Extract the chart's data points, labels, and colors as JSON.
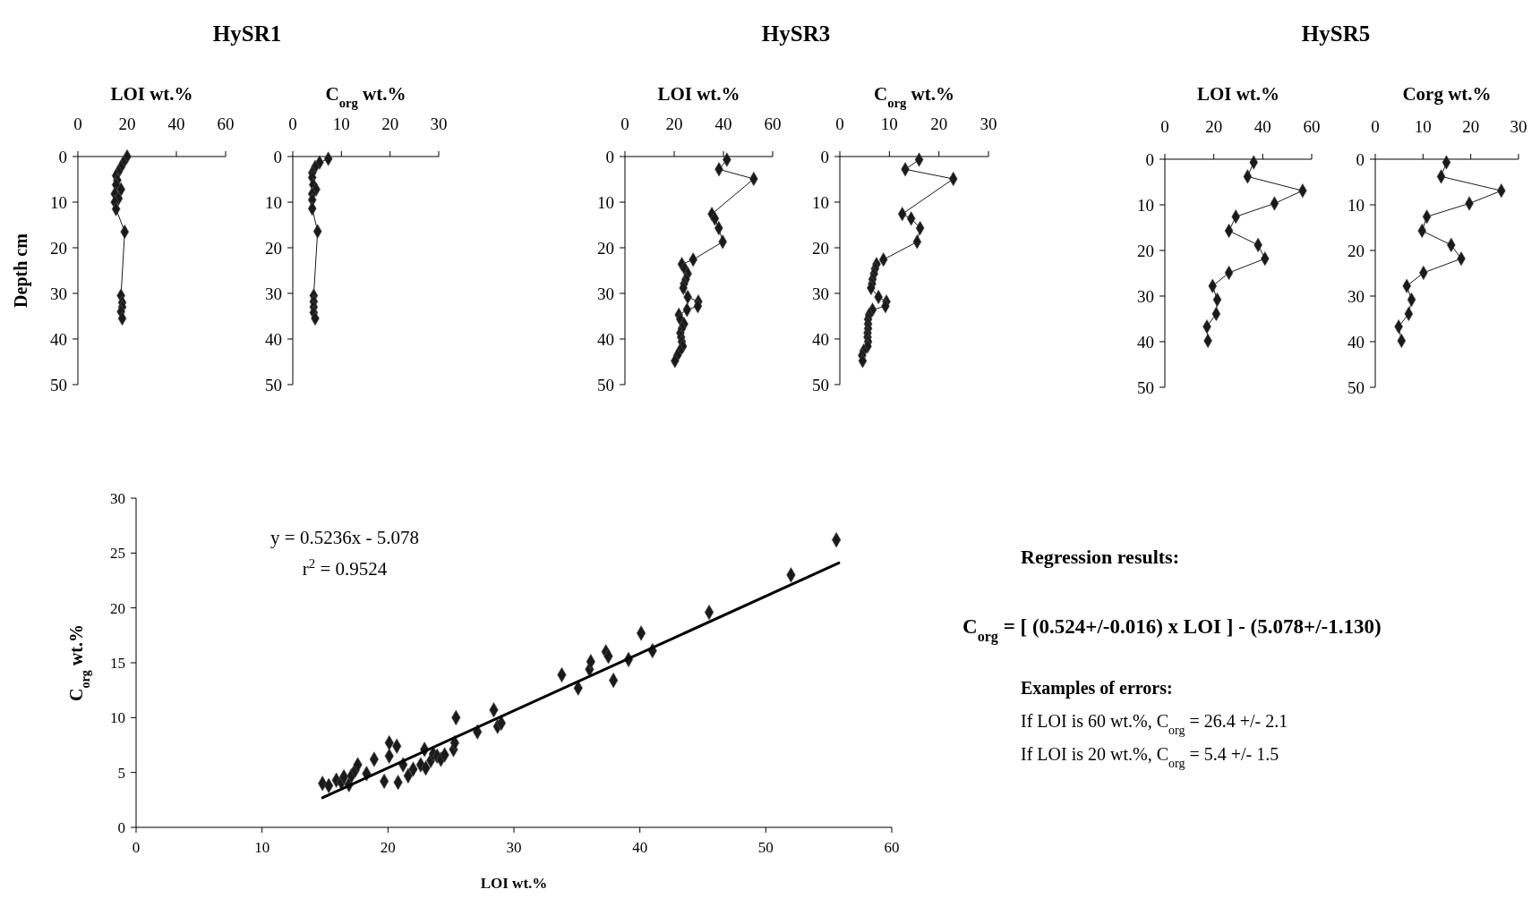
{
  "chart_data": [
    {
      "type": "line",
      "title": "HySR1",
      "xlabel": "LOI wt.%",
      "ylabel": "Depth cm",
      "marker": "diamond",
      "xlim": [
        0,
        60
      ],
      "xticks": [
        0,
        20,
        40,
        60
      ],
      "ylim": [
        50,
        0
      ],
      "yticks": [
        0,
        10,
        20,
        30,
        40,
        50
      ],
      "series": [
        {
          "color": "#1a1a1a",
          "x": [
            20,
            18.5,
            17.5,
            16.5,
            15.5,
            16,
            15.5,
            17.5,
            15,
            16.5,
            15,
            15.5,
            19,
            17.5,
            18,
            18,
            17.5,
            18
          ],
          "values": [
            0,
            1.3,
            2.3,
            3.3,
            4.2,
            5.2,
            6.2,
            7.2,
            8.2,
            9.2,
            10,
            11.5,
            16.5,
            30.5,
            32,
            33,
            34,
            35.5
          ]
        }
      ]
    },
    {
      "type": "line",
      "xlabel": "C$_{org}$ wt.%",
      "marker": "diamond",
      "xlim": [
        0,
        30
      ],
      "xticks": [
        0,
        10,
        20,
        30
      ],
      "ylim": [
        50,
        0
      ],
      "yticks": [
        0,
        10,
        20,
        30,
        40,
        50
      ],
      "series": [
        {
          "color": "#1a1a1a",
          "x": [
            7.3,
            5.5,
            4.6,
            4,
            4,
            4.2,
            4.8,
            4,
            4,
            4,
            5.1,
            4.3,
            4.3,
            4.3,
            4.3,
            4.6
          ],
          "values": [
            0.5,
            1.3,
            2.3,
            3.6,
            4.6,
            6.2,
            7.2,
            8.2,
            9.5,
            11.4,
            16.4,
            30.5,
            31.8,
            33,
            34.2,
            35.5
          ]
        }
      ]
    },
    {
      "type": "line",
      "title": "HySR3",
      "xlabel": "LOI wt.%",
      "marker": "diamond",
      "xlim": [
        0,
        60
      ],
      "xticks": [
        0,
        20,
        40,
        60
      ],
      "ylim": [
        50,
        0
      ],
      "yticks": [
        0,
        10,
        20,
        30,
        40,
        50
      ],
      "series": [
        {
          "color": "#1a1a1a",
          "x": [
            41.4,
            38.2,
            52.3,
            35.3,
            36.5,
            38.1,
            39.7,
            27.7,
            23.1,
            24.3,
            25.5,
            24.7,
            24,
            23.7,
            25.5,
            29.8,
            29.6,
            25.2,
            21.9,
            22.5,
            24,
            23.1,
            22.5,
            22.8,
            23.1,
            23.5,
            22.3,
            21.3,
            20.3
          ],
          "values": [
            0.7,
            2.8,
            4.9,
            12.6,
            13.6,
            15.7,
            18.7,
            22.6,
            23.6,
            24.6,
            25.7,
            26.9,
            27.9,
            28.8,
            30.8,
            31.8,
            32.8,
            33.6,
            34.7,
            35.7,
            36.7,
            37.7,
            38.7,
            39.6,
            40.6,
            41.6,
            42.6,
            43.6,
            44.8
          ]
        }
      ]
    },
    {
      "type": "line",
      "xlabel": "C$_{org}$ wt.%",
      "marker": "diamond",
      "xlim": [
        0,
        30
      ],
      "xticks": [
        0,
        10,
        20,
        30
      ],
      "ylim": [
        50,
        0
      ],
      "yticks": [
        0,
        10,
        20,
        30,
        40,
        50
      ],
      "series": [
        {
          "color": "#1a1a1a",
          "x": [
            16,
            13.2,
            22.9,
            12.6,
            14.4,
            16.2,
            15.6,
            8.8,
            7.4,
            7.1,
            6.9,
            6.6,
            6.5,
            6.3,
            7.8,
            9.4,
            9.2,
            6.6,
            5.9,
            5.7,
            5.7,
            5.7,
            5.6,
            5.6,
            5.7,
            5.6,
            4.8,
            4.5,
            4.6
          ],
          "values": [
            0.7,
            2.8,
            4.9,
            12.6,
            13.6,
            15.7,
            18.7,
            22.6,
            23.6,
            24.6,
            25.7,
            26.9,
            27.9,
            28.8,
            30.8,
            31.8,
            32.8,
            33.6,
            34.7,
            35.7,
            36.7,
            37.7,
            38.7,
            39.6,
            40.6,
            41.6,
            42.6,
            43.6,
            44.8
          ]
        }
      ]
    },
    {
      "type": "line",
      "title": "HySR5",
      "xlabel": "LOI wt.%",
      "marker": "diamond",
      "xlim": [
        0,
        60
      ],
      "xticks": [
        0,
        20,
        40,
        60
      ],
      "ylim": [
        50,
        0
      ],
      "yticks": [
        0,
        10,
        20,
        30,
        40,
        50
      ],
      "series": [
        {
          "color": "#1a1a1a",
          "x": [
            36.3,
            33.8,
            56.3,
            44.8,
            29,
            26.2,
            38.1,
            40.9,
            26.2,
            19.5,
            21.4,
            21,
            17.2,
            17.6
          ],
          "values": [
            0.7,
            3.8,
            6.9,
            9.7,
            12.6,
            15.7,
            18.8,
            21.8,
            24.9,
            27.8,
            30.8,
            33.9,
            36.7,
            39.8
          ]
        }
      ]
    },
    {
      "type": "line",
      "xlabel": "Corg wt.%",
      "marker": "diamond",
      "xlim": [
        0,
        30
      ],
      "xticks": [
        0,
        10,
        20,
        30
      ],
      "ylim": [
        50,
        0
      ],
      "yticks": [
        0,
        10,
        20,
        30,
        40,
        50
      ],
      "series": [
        {
          "color": "#1a1a1a",
          "x": [
            14.9,
            13.8,
            26.4,
            19.7,
            10.8,
            9.8,
            15.9,
            18,
            10.1,
            6.6,
            7.6,
            7,
            4.9,
            5.5
          ],
          "values": [
            0.7,
            3.8,
            6.9,
            9.7,
            12.6,
            15.7,
            18.8,
            21.8,
            24.9,
            27.8,
            30.8,
            33.9,
            36.7,
            39.8
          ]
        }
      ]
    },
    {
      "type": "scatter",
      "xlabel": "LOI wt.%",
      "ylabel": "C$_{org}$ wt.%",
      "marker": "diamond",
      "xlim": [
        0,
        60
      ],
      "xticks": [
        0,
        10,
        20,
        30,
        40,
        50,
        60
      ],
      "ylim": [
        0,
        30
      ],
      "yticks": [
        0,
        5,
        10,
        15,
        20,
        25,
        30
      ],
      "annotations": [
        "y = 0.5236x - 5.078",
        "r$^{2}$ = 0.9524"
      ],
      "series": [
        {
          "color": "#1a1a1a",
          "x": [
            14.8,
            15.3,
            15.9,
            16.3,
            16.5,
            16.9,
            17.1,
            17.4,
            17.6,
            18.3,
            18.9,
            19.7,
            20.1,
            20.1,
            20.7,
            20.8,
            21.2,
            21.6,
            22,
            22.6,
            22.9,
            23,
            23.4,
            23.6,
            23.9,
            24.2,
            24.5,
            25.2,
            25.3,
            25.4,
            27.1,
            28.4,
            28.7,
            29,
            33.8,
            35.1,
            36,
            36.1,
            37.3,
            37.5,
            37.9,
            39.1,
            40.1,
            41,
            45.5,
            52,
            55.6
          ],
          "values": [
            4,
            3.8,
            4.3,
            4.1,
            4.6,
            3.9,
            4.7,
            5.2,
            5.7,
            4.9,
            6.2,
            4.2,
            6.5,
            7.7,
            7.4,
            4.1,
            5.7,
            4.7,
            5.3,
            5.7,
            7.1,
            5.4,
            6.1,
            6.7,
            6.5,
            6.2,
            6.6,
            7.1,
            7.7,
            10,
            8.7,
            10.7,
            9.2,
            9.5,
            13.9,
            12.7,
            14.4,
            15.1,
            16,
            15.6,
            13.4,
            15.3,
            17.7,
            16.1,
            19.6,
            23,
            26.2
          ]
        },
        {
          "type": "line",
          "marker": "none",
          "color": "#000000",
          "x": [
            14.8,
            55.8
          ],
          "values": [
            2.7,
            24.1
          ]
        }
      ]
    },
    {
      "type": "other",
      "annotations": [
        "Regression results:",
        "C$_{org}$ = [ (0.524+/-0.016) x LOI ] - (5.078+/-1.130)",
        "Examples of errors:",
        "If LOI is 60 wt.%, C$_{org}$ = 26.4 +/- 2.1",
        "If LOI is 20 wt.%, C$_{org}$ = 5.4 +/- 1.5"
      ]
    }
  ]
}
